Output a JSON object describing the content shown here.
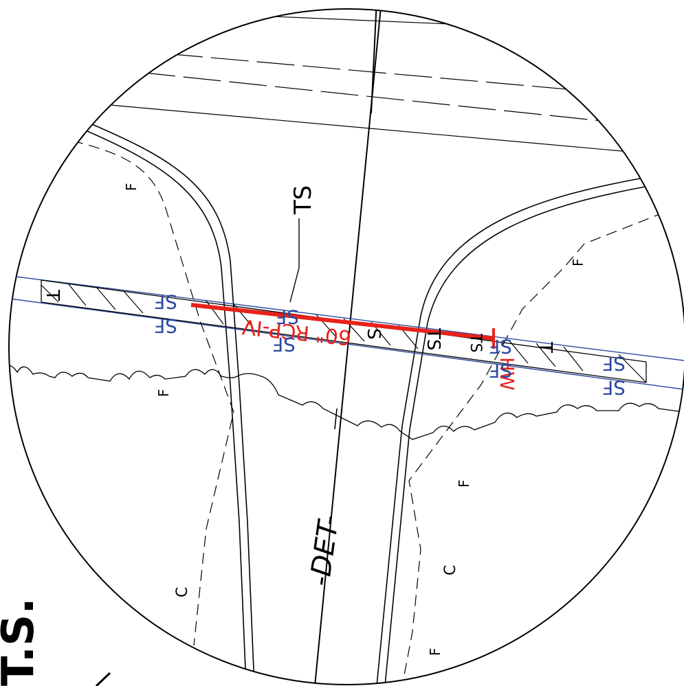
{
  "labels": {
    "det": "-DET-",
    "ts_callout": "TS",
    "pipe": "60\" RCP-IV",
    "hw": "HW",
    "sf": "SF",
    "t": "T",
    "f": "F",
    "c": "C",
    "ts_small": "TS",
    "s": "S",
    "l": "L",
    "corner": "T.S."
  },
  "colors": {
    "linework": "#000000",
    "silt_fence": "#2d4aa0",
    "pipe": "#e8221b",
    "background": "#ffffff"
  }
}
